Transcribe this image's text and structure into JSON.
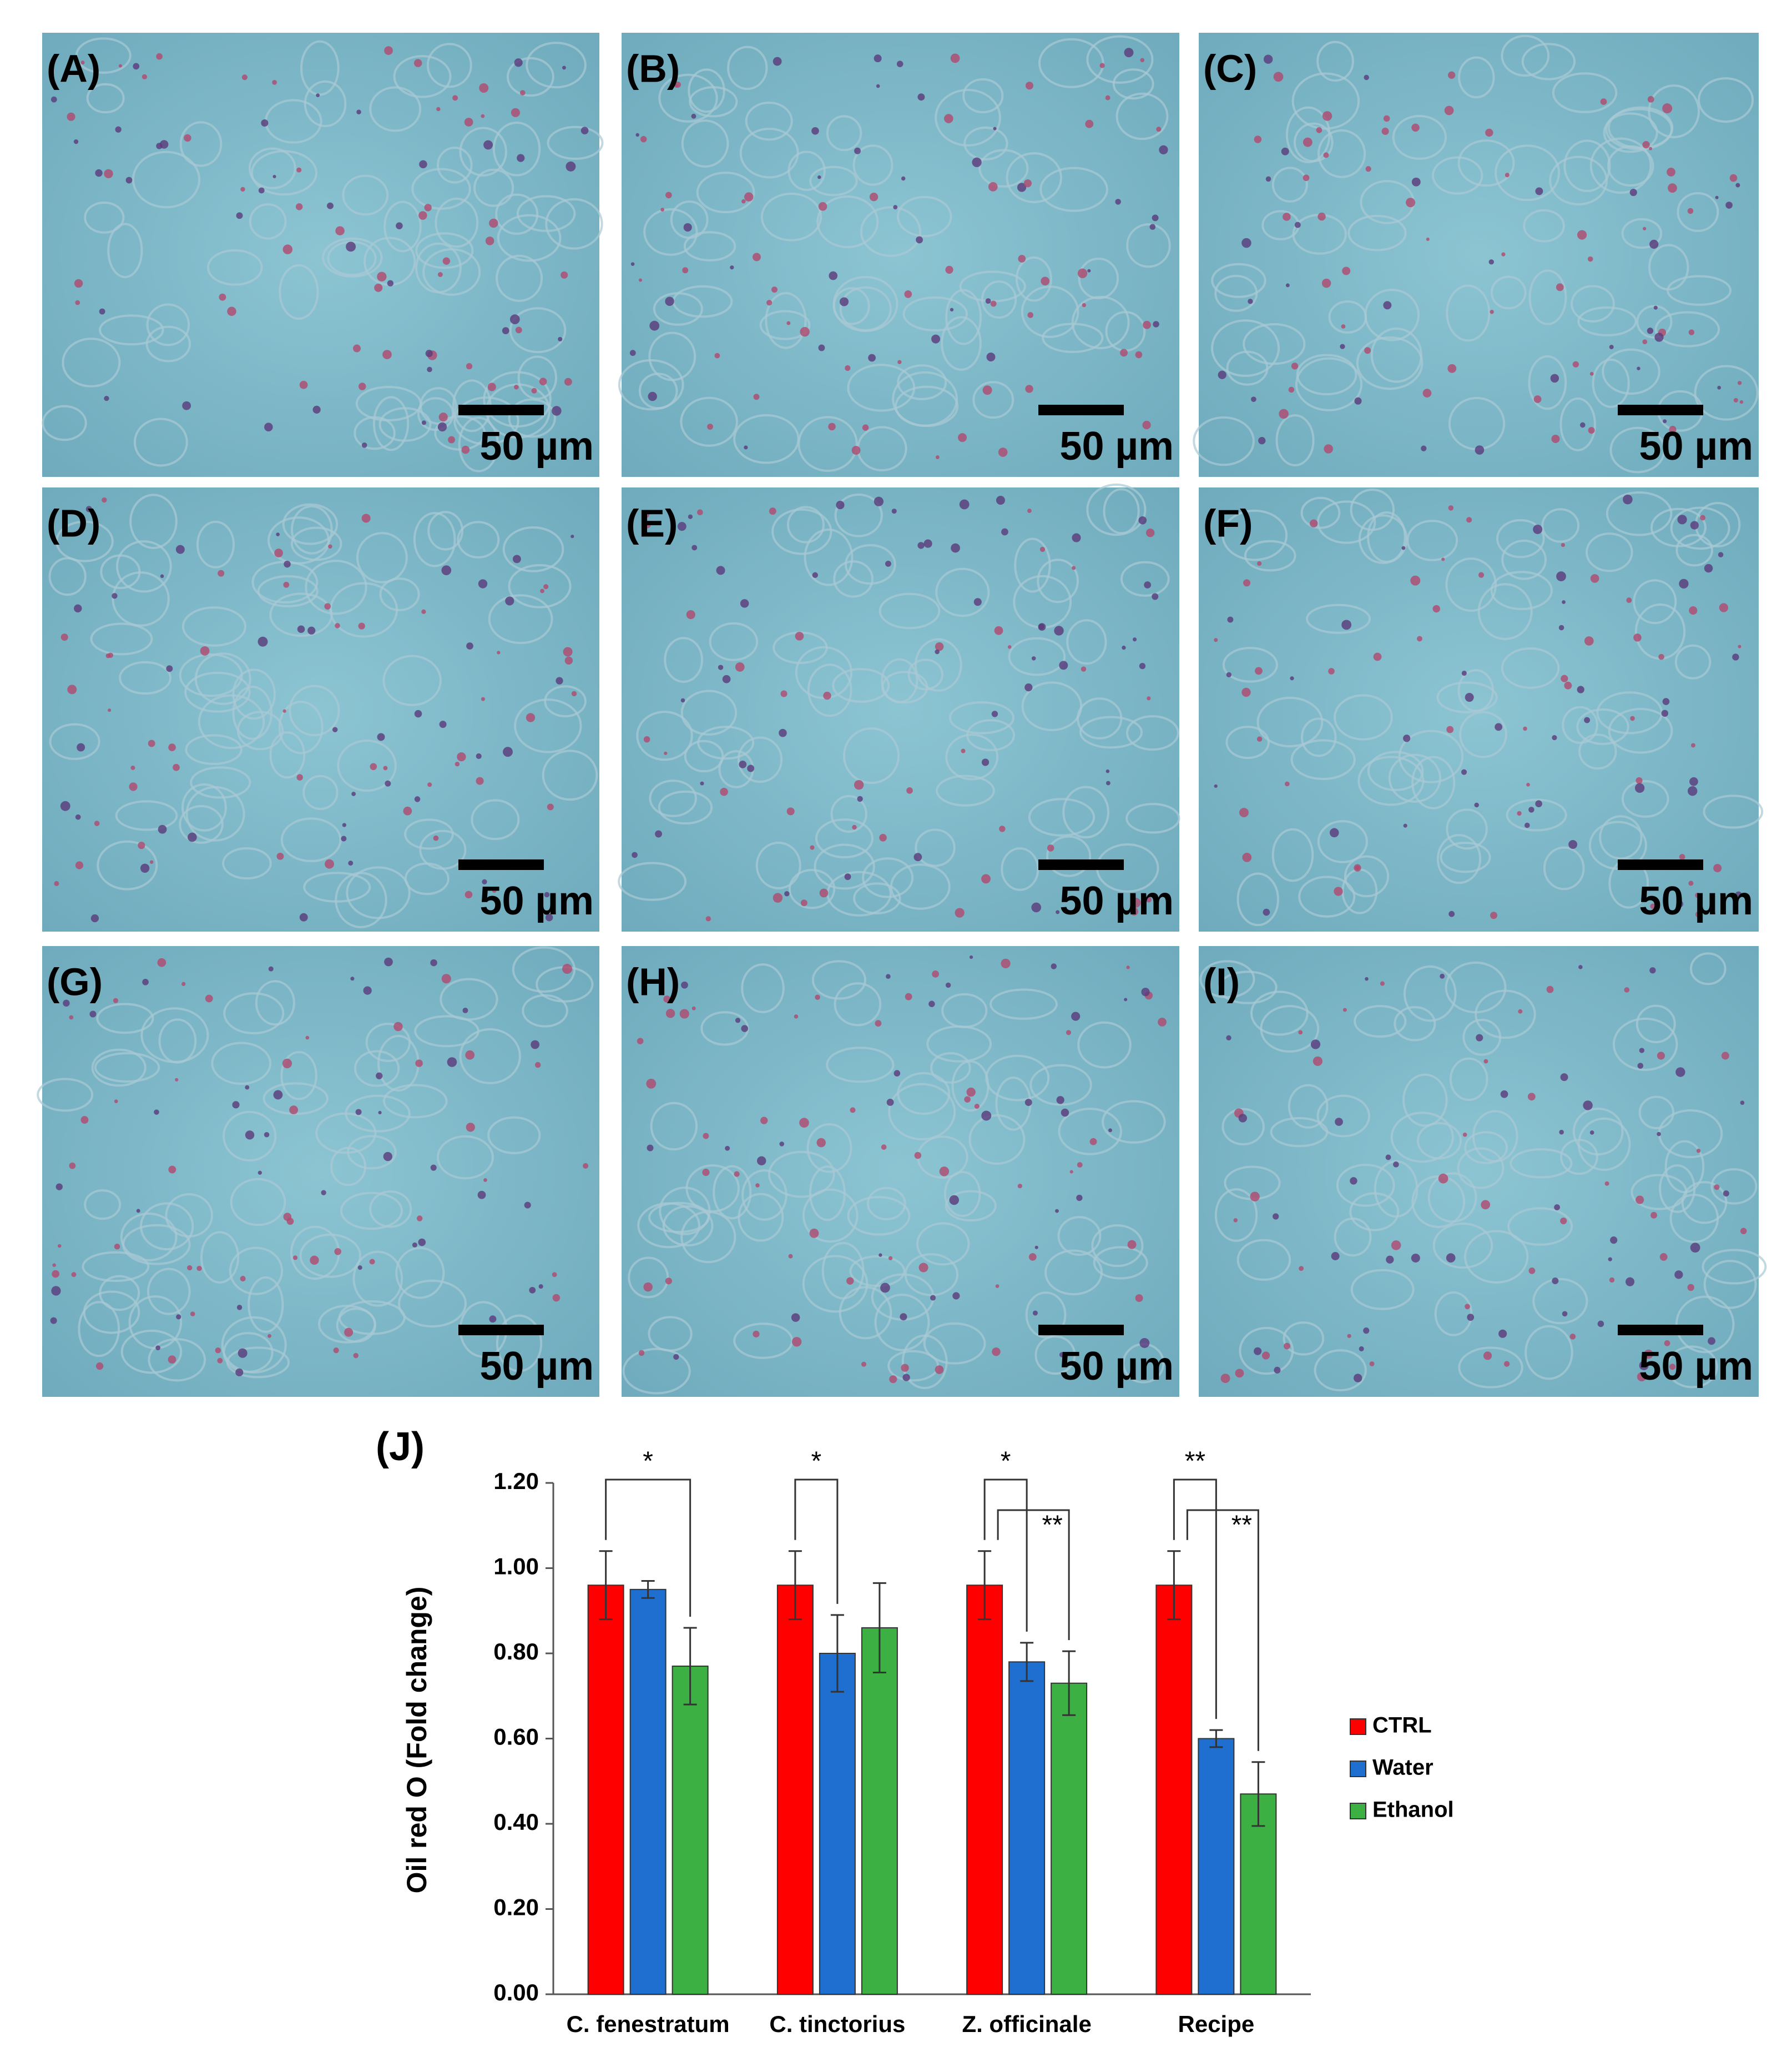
{
  "panels": [
    {
      "label": "(A)",
      "scale": "50 µm"
    },
    {
      "label": "(B)",
      "scale": "50 µm"
    },
    {
      "label": "(C)",
      "scale": "50 µm"
    },
    {
      "label": "(D)",
      "scale": "50 µm"
    },
    {
      "label": "(E)",
      "scale": "50 µm"
    },
    {
      "label": "(F)",
      "scale": "50 µm"
    },
    {
      "label": "(G)",
      "scale": "50 µm"
    },
    {
      "label": "(H)",
      "scale": "50 µm"
    },
    {
      "label": "(I)",
      "scale": "50 µm"
    }
  ],
  "chart_data": {
    "type": "bar",
    "panel_label": "(J)",
    "y_label": "Oil red O (Fold change)",
    "categories": [
      "C. fenestratum",
      "C. tinctorius",
      "Z. officinale",
      "Recipe"
    ],
    "series": [
      {
        "name": "CTRL",
        "color": "#ff0000",
        "values": [
          0.96,
          0.96,
          0.96,
          0.96
        ],
        "errors": [
          0.08,
          0.08,
          0.08,
          0.08
        ]
      },
      {
        "name": "Water",
        "color": "#1f6fd1",
        "values": [
          0.95,
          0.8,
          0.78,
          0.6
        ],
        "errors": [
          0.02,
          0.09,
          0.045,
          0.02
        ]
      },
      {
        "name": "Ethanol",
        "color": "#3cb043",
        "values": [
          0.77,
          0.86,
          0.73,
          0.47
        ],
        "errors": [
          0.09,
          0.105,
          0.075,
          0.075
        ]
      }
    ],
    "ylim": [
      0,
      1.2
    ],
    "yticks": [
      {
        "value": 0,
        "label": "0.00"
      },
      {
        "value": 0.2,
        "label": "0.20"
      },
      {
        "value": 0.4,
        "label": "0.40"
      },
      {
        "value": 0.6,
        "label": "0.60"
      },
      {
        "value": 0.8,
        "label": "0.80"
      },
      {
        "value": 1.0,
        "label": "1.00"
      },
      {
        "value": 1.2,
        "label": "1.20"
      }
    ],
    "significance": [
      {
        "category": 0,
        "from": 0,
        "to": 2,
        "label": "*"
      },
      {
        "category": 1,
        "from": 0,
        "to": 1,
        "label": "*"
      },
      {
        "category": 2,
        "from": 0,
        "to": 1,
        "label": "*"
      },
      {
        "category": 2,
        "from": 0,
        "to": 2,
        "label": "**"
      },
      {
        "category": 3,
        "from": 0,
        "to": 1,
        "label": "**"
      },
      {
        "category": 3,
        "from": 0,
        "to": 2,
        "label": "**"
      }
    ],
    "legend": "right"
  }
}
